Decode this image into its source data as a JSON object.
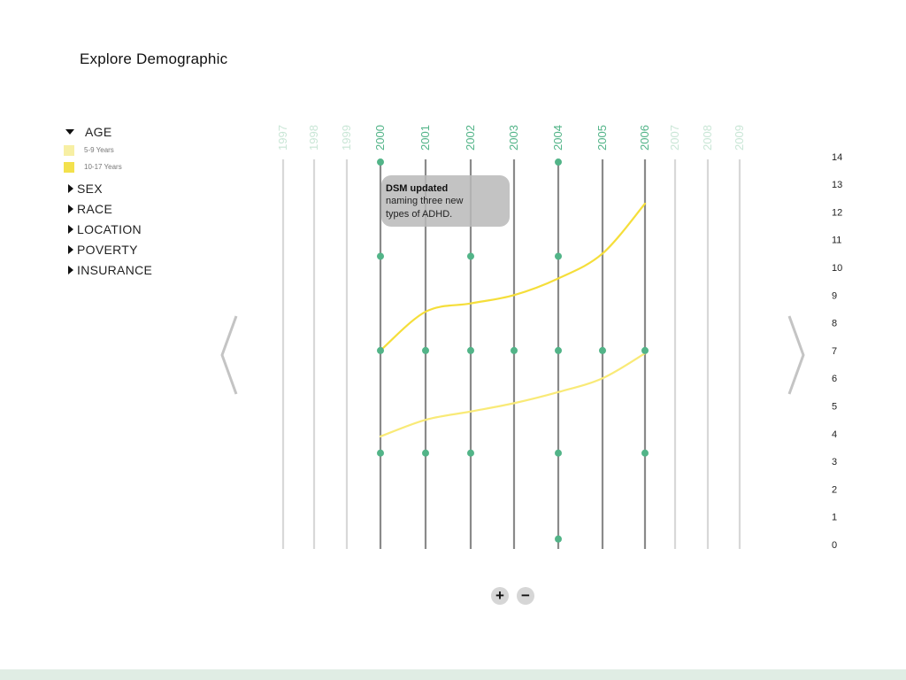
{
  "header": {
    "title": "Explore Demographic"
  },
  "filters": {
    "age": {
      "label": "AGE",
      "legend": [
        {
          "label": "5-9 Years",
          "color": "#f7efa4"
        },
        {
          "label": "10-17 Years",
          "color": "#f3e14d"
        }
      ]
    },
    "others": [
      {
        "label": "SEX"
      },
      {
        "label": "RACE"
      },
      {
        "label": "LOCATION"
      },
      {
        "label": "POVERTY"
      },
      {
        "label": "INSURANCE"
      }
    ]
  },
  "annotation": {
    "title": "DSM updated",
    "body_line1": "naming three new",
    "body_line2": "types of ADHD."
  },
  "colors": {
    "accent_green": "#52b488",
    "line_yellow": "#f5de3a",
    "line_yellow_light": "#f9ea77",
    "axis_line": "#8a8a8a",
    "faded_line": "#d8d8d8",
    "footer": "#e0ede4"
  },
  "icons": {
    "prev": "chevron-left-icon",
    "next": "chevron-right-icon",
    "zoom_in": "plus-icon",
    "zoom_out": "minus-icon"
  },
  "chart_data": {
    "type": "line",
    "x": [
      1997,
      1998,
      1999,
      2000,
      2001,
      2002,
      2003,
      2004,
      2005,
      2006,
      2007,
      2008,
      2009
    ],
    "x_emphasis": [
      "faded",
      "faded",
      "faded",
      "active",
      "active",
      "active",
      "active",
      "active",
      "active",
      "active",
      "faded",
      "faded",
      "faded"
    ],
    "y_ticks": [
      0,
      1,
      2,
      3,
      4,
      5,
      6,
      7,
      8,
      9,
      10,
      11,
      12,
      13,
      14
    ],
    "ylim": [
      0,
      14
    ],
    "series": [
      {
        "name": "10-17 Years",
        "x": [
          2000,
          2001,
          2002,
          2003,
          2004,
          2005,
          2006
        ],
        "values": [
          7,
          8.4,
          8.7,
          9.0,
          9.6,
          10.5,
          12.3
        ]
      },
      {
        "name": "5-9 Years",
        "x": [
          2000,
          2001,
          2002,
          2003,
          2004,
          2005,
          2006
        ],
        "values": [
          3.9,
          4.5,
          4.8,
          5.1,
          5.5,
          6.0,
          6.9
        ]
      }
    ],
    "event_markers": [
      {
        "x": 2000,
        "y": 13.8
      },
      {
        "x": 2004,
        "y": 13.8
      },
      {
        "x": 2000,
        "y": 10.4
      },
      {
        "x": 2002,
        "y": 10.4
      },
      {
        "x": 2004,
        "y": 10.4
      },
      {
        "x": 2000,
        "y": 7
      },
      {
        "x": 2001,
        "y": 7
      },
      {
        "x": 2002,
        "y": 7
      },
      {
        "x": 2003,
        "y": 7
      },
      {
        "x": 2004,
        "y": 7
      },
      {
        "x": 2005,
        "y": 7
      },
      {
        "x": 2006,
        "y": 7
      },
      {
        "x": 2000,
        "y": 3.3
      },
      {
        "x": 2001,
        "y": 3.3
      },
      {
        "x": 2002,
        "y": 3.3
      },
      {
        "x": 2004,
        "y": 3.3
      },
      {
        "x": 2006,
        "y": 3.3
      },
      {
        "x": 2004,
        "y": 0.2
      }
    ]
  }
}
